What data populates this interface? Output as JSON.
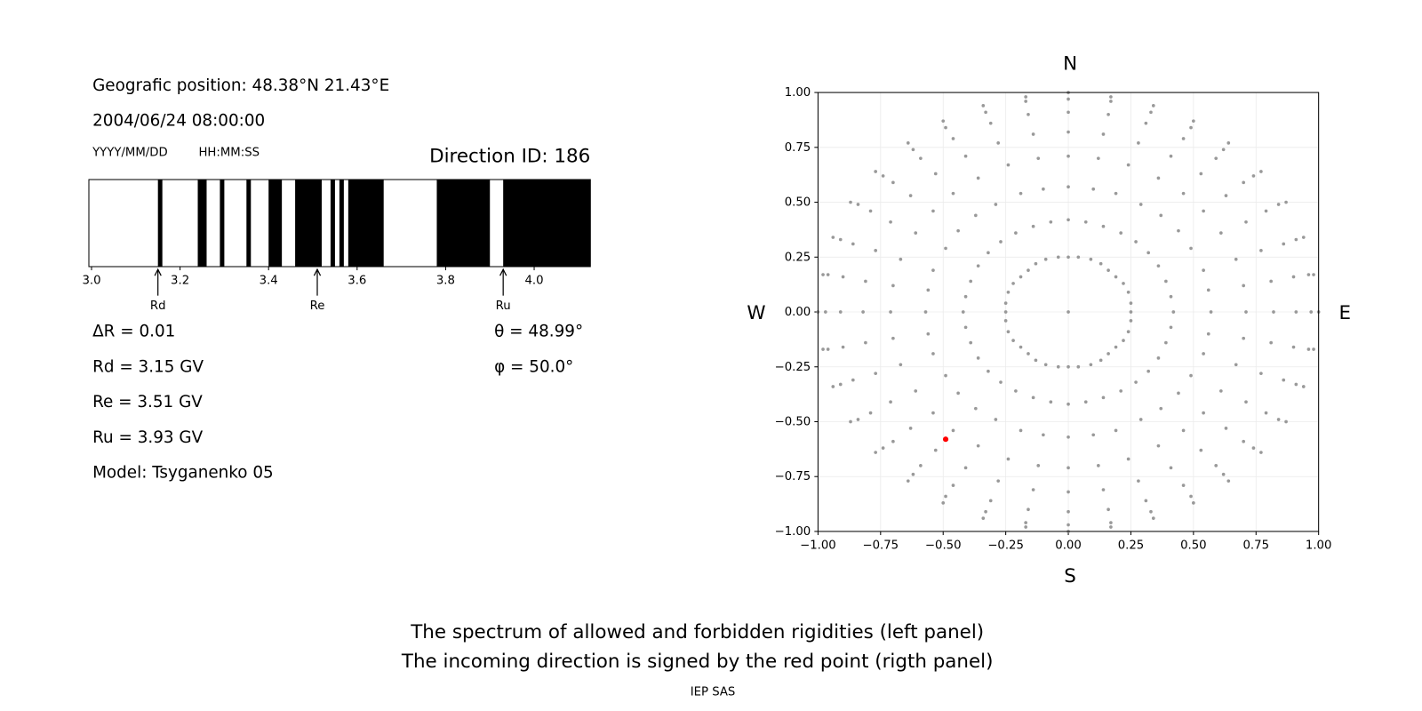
{
  "header": {
    "position": "Geografic position: 48.38°N 21.43°E",
    "datetime": "2004/06/24 08:00:00",
    "date_format": "YYYY/MM/DD",
    "time_format": "HH:MM:SS",
    "direction": "Direction ID: 186"
  },
  "results": [
    "ΔR = 0.01",
    "Rd = 3.15 GV",
    "Re = 3.51 GV",
    "Ru = 3.93 GV",
    "Model: Tsyganenko 05"
  ],
  "angles": [
    "θ = 48.99°",
    "φ = 50.0°"
  ],
  "footer": {
    "caption": [
      "The spectrum of allowed and forbidden rigidities (left panel)",
      "The incoming direction is signed by the red point (rigth panel)"
    ],
    "credit": "IEP SAS"
  },
  "chart_data": [
    {
      "type": "spectrum",
      "color": "#000000",
      "xlim": [
        2.994,
        4.127
      ],
      "xticks": [
        {
          "value": 3,
          "label": "3.0"
        },
        3.2,
        3.4,
        3.6,
        3.8,
        {
          "value": 4,
          "label": "4.0"
        }
      ],
      "intervals": [
        [
          3.15,
          3.16
        ],
        [
          3.24,
          3.26
        ],
        [
          3.29,
          3.3
        ],
        [
          3.35,
          3.36
        ],
        [
          3.4,
          3.43
        ],
        [
          3.46,
          3.52
        ],
        [
          3.54,
          3.55
        ],
        [
          3.56,
          3.57
        ],
        [
          3.58,
          3.66
        ],
        [
          3.78,
          3.9
        ],
        [
          3.93,
          4.127
        ]
      ],
      "markers": {
        "labels": [
          "Rd",
          "Re",
          "Ru"
        ],
        "values": [
          3.15,
          3.51,
          3.93
        ]
      }
    },
    {
      "type": "scatter",
      "xlim": [
        -1,
        1
      ],
      "ylim": [
        -1,
        1
      ],
      "grid": true,
      "xticks": [
        {
          "value": -1,
          "label": "−1.00"
        },
        {
          "value": -0.75,
          "label": "−0.75"
        },
        {
          "value": -0.5,
          "label": "−0.50"
        },
        {
          "value": -0.25,
          "label": "−0.25"
        },
        {
          "value": 0,
          "label": "0.00"
        },
        0.25,
        {
          "value": 0.5,
          "label": "0.50"
        },
        0.75,
        {
          "value": 1,
          "label": "1.00"
        }
      ],
      "yticks": [
        {
          "value": -1,
          "label": "−1.00"
        },
        {
          "value": -0.75,
          "label": "−0.75"
        },
        {
          "value": -0.5,
          "label": "−0.50"
        },
        {
          "value": -0.25,
          "label": "−0.25"
        },
        {
          "value": 0,
          "label": "0.00"
        },
        0.25,
        {
          "value": 0.5,
          "label": "0.50"
        },
        0.75,
        {
          "value": 1,
          "label": "1.00"
        }
      ],
      "labels": {
        "north": "N",
        "south": "S",
        "west": "W",
        "east": "E"
      },
      "series": [
        {
          "color": "#999999",
          "x": [
            0,
            0.25,
            0.42,
            0.57,
            0.71,
            0.82,
            0.91,
            0.97,
            1,
            0.25,
            0.41,
            0.56,
            0.7,
            0.81,
            0.9,
            0.96,
            0.98,
            0.24,
            0.39,
            0.54,
            0.67,
            0.77,
            0.86,
            0.91,
            0.94,
            0.22,
            0.36,
            0.49,
            0.61,
            0.71,
            0.79,
            0.84,
            0.87,
            0.19,
            0.32,
            0.44,
            0.54,
            0.63,
            0.7,
            0.74,
            0.77,
            0.16,
            0.27,
            0.37,
            0.46,
            0.53,
            0.59,
            0.62,
            0.64,
            0.13,
            0.21,
            0.29,
            0.36,
            0.41,
            0.46,
            0.49,
            0.5,
            0.09,
            0.14,
            0.19,
            0.24,
            0.28,
            0.31,
            0.33,
            0.34,
            0.04,
            0.07,
            0.1,
            0.12,
            0.14,
            0.16,
            0.17,
            0.17,
            0,
            0,
            0,
            0,
            0,
            0,
            0,
            0,
            -0.04,
            -0.07,
            -0.1,
            -0.12,
            -0.14,
            -0.16,
            -0.17,
            -0.17,
            -0.09,
            -0.14,
            -0.19,
            -0.24,
            -0.28,
            -0.31,
            -0.33,
            -0.34,
            -0.13,
            -0.21,
            -0.29,
            -0.36,
            -0.41,
            -0.46,
            -0.49,
            -0.5,
            -0.16,
            -0.27,
            -0.37,
            -0.46,
            -0.53,
            -0.59,
            -0.62,
            -0.64,
            -0.19,
            -0.32,
            -0.44,
            -0.54,
            -0.63,
            -0.7,
            -0.74,
            -0.77,
            -0.22,
            -0.36,
            -0.49,
            -0.61,
            -0.71,
            -0.79,
            -0.84,
            -0.87,
            -0.24,
            -0.39,
            -0.54,
            -0.67,
            -0.77,
            -0.86,
            -0.91,
            -0.94,
            -0.25,
            -0.41,
            -0.56,
            -0.7,
            -0.81,
            -0.9,
            -0.96,
            -0.98,
            -0.25,
            -0.42,
            -0.57,
            -0.71,
            -0.82,
            -0.91,
            -0.97,
            -1,
            -0.25,
            -0.41,
            -0.56,
            -0.7,
            -0.81,
            -0.9,
            -0.96,
            -0.98,
            -0.24,
            -0.39,
            -0.54,
            -0.67,
            -0.77,
            -0.86,
            -0.91,
            -0.94,
            -0.22,
            -0.36,
            -0.49,
            -0.61,
            -0.71,
            -0.79,
            -0.84,
            -0.87,
            -0.19,
            -0.32,
            -0.44,
            -0.54,
            -0.63,
            -0.7,
            -0.74,
            -0.77,
            -0.16,
            -0.27,
            -0.37,
            -0.46,
            -0.53,
            -0.59,
            -0.62,
            -0.64,
            -0.13,
            -0.21,
            -0.29,
            -0.36,
            -0.41,
            -0.46,
            -0.49,
            -0.5,
            -0.09,
            -0.14,
            -0.19,
            -0.24,
            -0.28,
            -0.31,
            -0.33,
            -0.34,
            -0.04,
            -0.07,
            -0.1,
            -0.12,
            -0.14,
            -0.16,
            -0.17,
            -0.17,
            0,
            0,
            0,
            0,
            0,
            0,
            0,
            0,
            0.04,
            0.07,
            0.1,
            0.12,
            0.14,
            0.16,
            0.17,
            0.17,
            0.09,
            0.14,
            0.19,
            0.24,
            0.28,
            0.31,
            0.33,
            0.34,
            0.13,
            0.21,
            0.29,
            0.36,
            0.41,
            0.46,
            0.49,
            0.5,
            0.16,
            0.27,
            0.37,
            0.46,
            0.53,
            0.59,
            0.62,
            0.64,
            0.19,
            0.32,
            0.44,
            0.54,
            0.63,
            0.7,
            0.74,
            0.77,
            0.22,
            0.36,
            0.49,
            0.61,
            0.71,
            0.79,
            0.84,
            0.87,
            0.24,
            0.39,
            0.54,
            0.67,
            0.77,
            0.86,
            0.91,
            0.94,
            0.25,
            0.41,
            0.56,
            0.7,
            0.81,
            0.9,
            0.96,
            0.98
          ],
          "y": [
            0,
            0,
            0,
            0,
            0,
            0,
            0,
            0,
            0,
            0.04,
            0.07,
            0.1,
            0.12,
            0.14,
            0.16,
            0.17,
            0.17,
            0.09,
            0.14,
            0.19,
            0.24,
            0.28,
            0.31,
            0.33,
            0.34,
            0.13,
            0.21,
            0.29,
            0.36,
            0.41,
            0.46,
            0.49,
            0.5,
            0.16,
            0.27,
            0.37,
            0.46,
            0.53,
            0.59,
            0.62,
            0.64,
            0.19,
            0.32,
            0.44,
            0.54,
            0.63,
            0.7,
            0.74,
            0.77,
            0.22,
            0.36,
            0.49,
            0.61,
            0.71,
            0.79,
            0.84,
            0.87,
            0.24,
            0.39,
            0.54,
            0.67,
            0.77,
            0.86,
            0.91,
            0.94,
            0.25,
            0.41,
            0.56,
            0.7,
            0.81,
            0.9,
            0.96,
            0.98,
            0.25,
            0.42,
            0.57,
            0.71,
            0.82,
            0.91,
            0.97,
            1,
            0.25,
            0.41,
            0.56,
            0.7,
            0.81,
            0.9,
            0.96,
            0.98,
            0.24,
            0.39,
            0.54,
            0.67,
            0.77,
            0.86,
            0.91,
            0.94,
            0.22,
            0.36,
            0.49,
            0.61,
            0.71,
            0.79,
            0.84,
            0.87,
            0.19,
            0.32,
            0.44,
            0.54,
            0.63,
            0.7,
            0.74,
            0.77,
            0.16,
            0.27,
            0.37,
            0.46,
            0.53,
            0.59,
            0.62,
            0.64,
            0.13,
            0.21,
            0.29,
            0.36,
            0.41,
            0.46,
            0.49,
            0.5,
            0.09,
            0.14,
            0.19,
            0.24,
            0.28,
            0.31,
            0.33,
            0.34,
            0.04,
            0.07,
            0.1,
            0.12,
            0.14,
            0.16,
            0.17,
            0.17,
            0,
            0,
            0,
            0,
            0,
            0,
            0,
            0,
            -0.04,
            -0.07,
            -0.1,
            -0.12,
            -0.14,
            -0.16,
            -0.17,
            -0.17,
            -0.09,
            -0.14,
            -0.19,
            -0.24,
            -0.28,
            -0.31,
            -0.33,
            -0.34,
            -0.13,
            -0.21,
            -0.29,
            -0.36,
            -0.41,
            -0.46,
            -0.49,
            -0.5,
            -0.16,
            -0.27,
            -0.37,
            -0.46,
            -0.53,
            -0.59,
            -0.62,
            -0.64,
            -0.19,
            -0.32,
            -0.44,
            -0.54,
            -0.63,
            -0.7,
            -0.74,
            -0.77,
            -0.22,
            -0.36,
            -0.49,
            -0.61,
            -0.71,
            -0.79,
            -0.84,
            -0.87,
            -0.24,
            -0.39,
            -0.54,
            -0.67,
            -0.77,
            -0.86,
            -0.91,
            -0.94,
            -0.25,
            -0.41,
            -0.56,
            -0.7,
            -0.81,
            -0.9,
            -0.96,
            -0.98,
            -0.25,
            -0.42,
            -0.57,
            -0.71,
            -0.82,
            -0.91,
            -0.97,
            -1,
            -0.25,
            -0.41,
            -0.56,
            -0.7,
            -0.81,
            -0.9,
            -0.96,
            -0.98,
            -0.24,
            -0.39,
            -0.54,
            -0.67,
            -0.77,
            -0.86,
            -0.91,
            -0.94,
            -0.22,
            -0.36,
            -0.49,
            -0.61,
            -0.71,
            -0.79,
            -0.84,
            -0.87,
            -0.19,
            -0.32,
            -0.44,
            -0.54,
            -0.63,
            -0.7,
            -0.74,
            -0.77,
            -0.16,
            -0.27,
            -0.37,
            -0.46,
            -0.53,
            -0.59,
            -0.62,
            -0.64,
            -0.13,
            -0.21,
            -0.29,
            -0.36,
            -0.41,
            -0.46,
            -0.49,
            -0.5,
            -0.09,
            -0.14,
            -0.19,
            -0.24,
            -0.28,
            -0.31,
            -0.33,
            -0.34,
            -0.04,
            -0.07,
            -0.1,
            -0.12,
            -0.14,
            -0.16,
            -0.17,
            -0.17
          ]
        },
        {
          "color": "#ff0000",
          "x": [
            -0.49
          ],
          "y": [
            -0.58
          ]
        }
      ]
    }
  ]
}
